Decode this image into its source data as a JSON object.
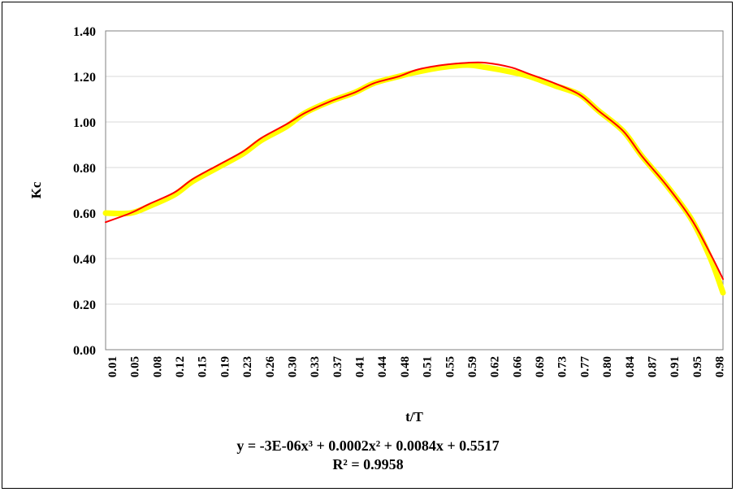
{
  "chart_data": {
    "type": "line",
    "title": "",
    "xlabel": "t/T",
    "ylabel": "Kc",
    "ylim": [
      0,
      1.4
    ],
    "y_ticks": [
      "0.00",
      "0.20",
      "0.40",
      "0.60",
      "0.80",
      "1.00",
      "1.20",
      "1.40"
    ],
    "x_ticks": [
      "0.01",
      "0.05",
      "0.08",
      "0.12",
      "0.15",
      "0.19",
      "0.23",
      "0.26",
      "0.30",
      "0.33",
      "0.37",
      "0.41",
      "0.44",
      "0.48",
      "0.51",
      "0.55",
      "0.59",
      "0.62",
      "0.66",
      "0.69",
      "0.73",
      "0.77",
      "0.80",
      "0.84",
      "0.87",
      "0.91",
      "0.95",
      "0.98"
    ],
    "grid": true,
    "series": [
      {
        "color": "#ffff00",
        "x": [
          0.01,
          0.05,
          0.08,
          0.12,
          0.15,
          0.19,
          0.23,
          0.26,
          0.3,
          0.33,
          0.37,
          0.41,
          0.44,
          0.48,
          0.51,
          0.55,
          0.59,
          0.62,
          0.66,
          0.69,
          0.73,
          0.77,
          0.8,
          0.84,
          0.87,
          0.91,
          0.95,
          0.98,
          1.0
        ],
        "values": [
          0.6,
          0.6,
          0.63,
          0.68,
          0.74,
          0.8,
          0.86,
          0.92,
          0.98,
          1.04,
          1.09,
          1.13,
          1.17,
          1.2,
          1.22,
          1.24,
          1.25,
          1.24,
          1.22,
          1.2,
          1.16,
          1.12,
          1.05,
          0.96,
          0.85,
          0.72,
          0.57,
          0.4,
          0.25
        ]
      },
      {
        "color": "#ff0000",
        "x": [
          0.01,
          0.05,
          0.08,
          0.12,
          0.15,
          0.19,
          0.23,
          0.26,
          0.3,
          0.33,
          0.37,
          0.41,
          0.44,
          0.48,
          0.51,
          0.55,
          0.59,
          0.62,
          0.66,
          0.69,
          0.73,
          0.77,
          0.8,
          0.84,
          0.87,
          0.91,
          0.95,
          0.98,
          1.0
        ],
        "values": [
          0.56,
          0.6,
          0.64,
          0.69,
          0.75,
          0.81,
          0.87,
          0.93,
          0.99,
          1.04,
          1.09,
          1.13,
          1.17,
          1.2,
          1.23,
          1.25,
          1.26,
          1.26,
          1.24,
          1.21,
          1.17,
          1.12,
          1.05,
          0.96,
          0.85,
          0.72,
          0.57,
          0.42,
          0.31
        ]
      }
    ],
    "trendline": {
      "equation": "y = -3E-06x³ + 0.0002x² + 0.0084x + 0.5517",
      "r_squared": "R² = 0.9958"
    }
  }
}
